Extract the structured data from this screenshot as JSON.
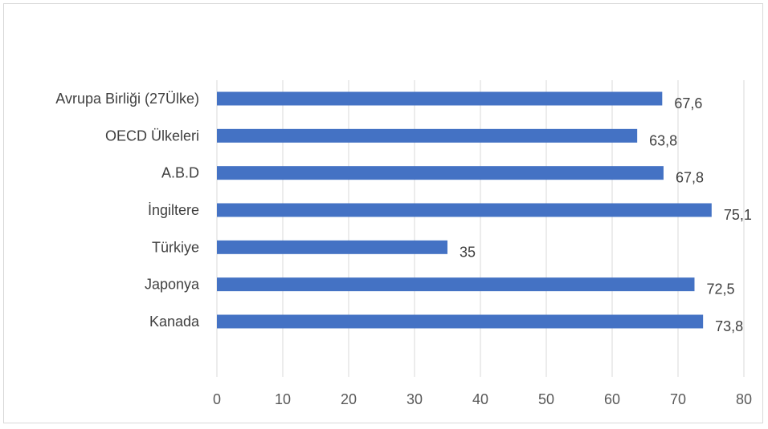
{
  "chart_data": {
    "type": "bar",
    "orientation": "horizontal",
    "title": "",
    "xlabel": "",
    "ylabel": "",
    "categories": [
      "Avrupa Birliği  (27Ülke)",
      "OECD Ülkeleri",
      "A.B.D",
      "İngiltere",
      "Türkiye",
      "Japonya",
      "Kanada"
    ],
    "values": [
      67.6,
      63.8,
      67.8,
      75.1,
      35,
      72.5,
      73.8
    ],
    "data_labels": [
      "67,6",
      "63,8",
      "67,8",
      "75,1",
      "35",
      "72,5",
      "73,8"
    ],
    "xlim": [
      0,
      80
    ],
    "xticks": [
      0,
      10,
      20,
      30,
      40,
      50,
      60,
      70,
      80
    ],
    "grid": "vertical",
    "legend": "none",
    "colors": {
      "bar": "#4472c4",
      "grid": "#d9d9d9",
      "text": "#404040",
      "tick_text": "#595959"
    }
  }
}
